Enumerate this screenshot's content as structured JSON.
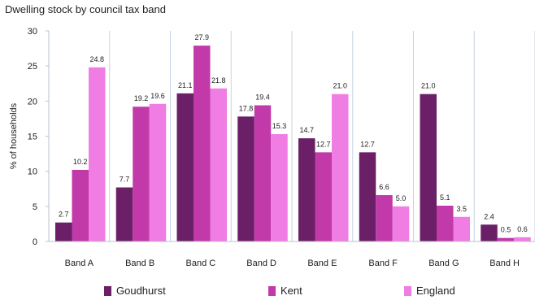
{
  "chart_data": {
    "type": "bar",
    "title": "Dwelling stock by council tax band",
    "xlabel": "",
    "ylabel": "% of households",
    "ylim": [
      0,
      30
    ],
    "yticks": [
      0,
      5,
      10,
      15,
      20,
      25,
      30
    ],
    "grid": "vertical category separators",
    "legend_position": "bottom",
    "categories": [
      "Band A",
      "Band B",
      "Band C",
      "Band D",
      "Band E",
      "Band F",
      "Band G",
      "Band H"
    ],
    "series": [
      {
        "name": "Goudhurst",
        "color": "#6b1f66",
        "values": [
          2.7,
          7.7,
          21.1,
          17.8,
          14.7,
          12.7,
          21.0,
          2.4
        ]
      },
      {
        "name": "Kent",
        "color": "#c23aa9",
        "values": [
          10.2,
          19.2,
          27.9,
          19.4,
          12.7,
          6.6,
          5.1,
          0.5
        ]
      },
      {
        "name": "England",
        "color": "#f07de3",
        "values": [
          24.8,
          19.6,
          21.8,
          15.3,
          21.0,
          5.0,
          3.5,
          0.6
        ]
      }
    ],
    "data_labels": [
      [
        "2.7",
        "7.7",
        "21.1",
        "17.8",
        "14.7",
        "12.7",
        "21.0",
        "2.4"
      ],
      [
        "10.2",
        "19.2",
        "27.9",
        "19.4",
        "12.7",
        "6.6",
        "5.1",
        "0.5"
      ],
      [
        "24.8",
        "19.6",
        "21.8",
        "15.3",
        "21.0",
        "5.0",
        "3.5",
        "0.6"
      ]
    ]
  }
}
